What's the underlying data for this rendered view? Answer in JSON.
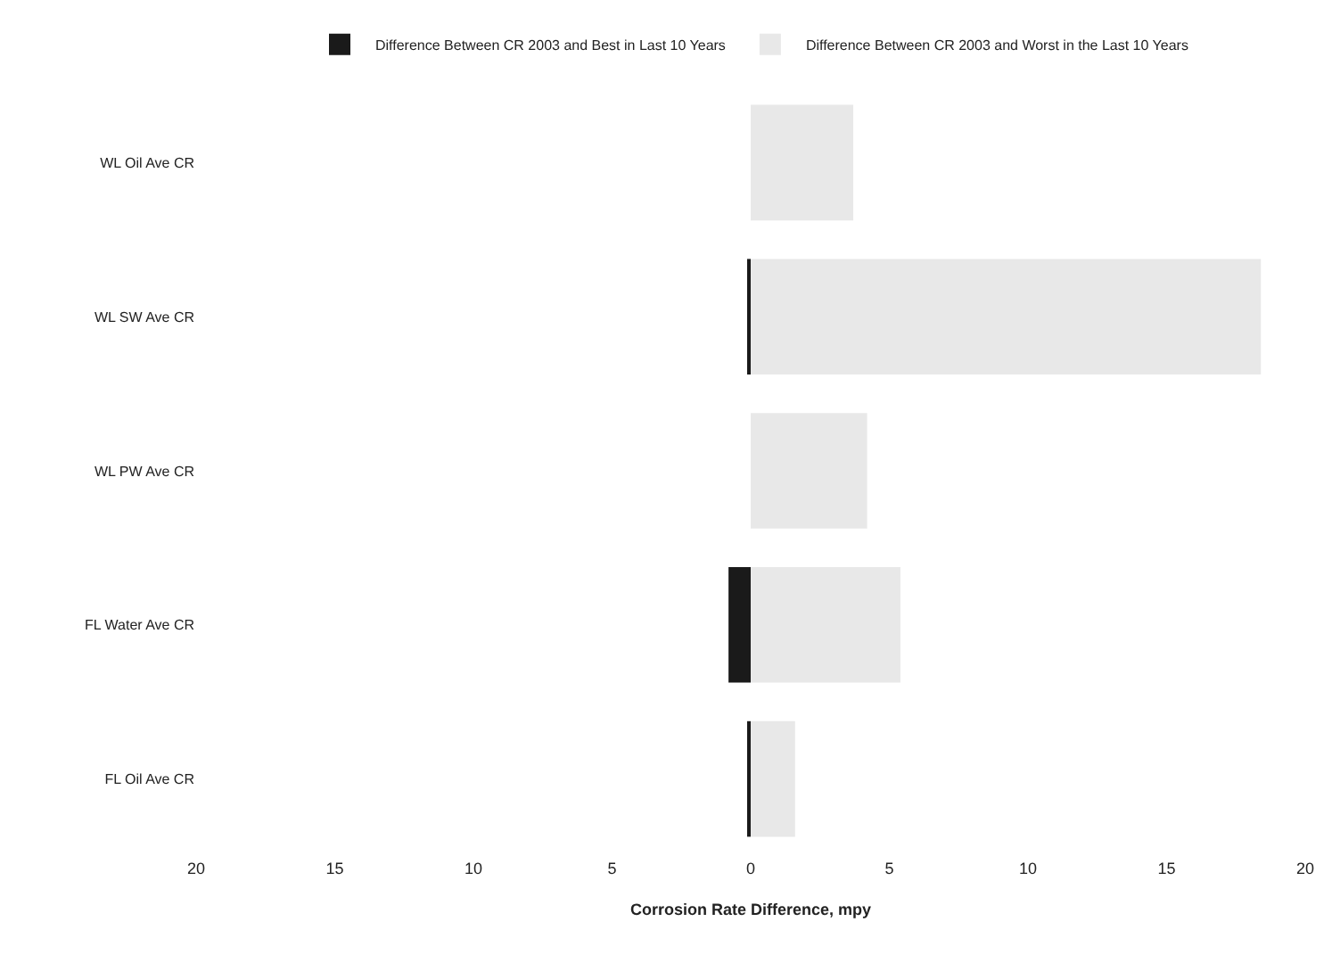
{
  "chart_data": {
    "type": "bar",
    "orientation": "horizontal",
    "stacked": true,
    "categories": [
      "WL Oil Ave CR",
      "WL SW Ave CR",
      "WL PW Ave CR",
      "FL Water Ave CR",
      "FL Oil Ave CR"
    ],
    "series": [
      {
        "name": "Difference Between CR 2003 and Best in Last 10 Years",
        "color": "#1a1a1a",
        "values": [
          null,
          -0.1,
          null,
          -0.8,
          -0.1
        ]
      },
      {
        "name": "Difference Between CR 2003 and Worst in the Last 10 Years",
        "color": "#e8e8e8",
        "values": [
          3.7,
          18.4,
          4.2,
          5.4,
          1.6
        ]
      }
    ],
    "xlabel": "Corrosion Rate Difference, mpy",
    "xlim": [
      -20,
      20
    ],
    "xticks": [
      {
        "value": -20,
        "label": "20"
      },
      {
        "value": -15,
        "label": "15"
      },
      {
        "value": -10,
        "label": "10"
      },
      {
        "value": -5,
        "label": "5"
      },
      0,
      5,
      10,
      15,
      20
    ],
    "legend": "top"
  }
}
